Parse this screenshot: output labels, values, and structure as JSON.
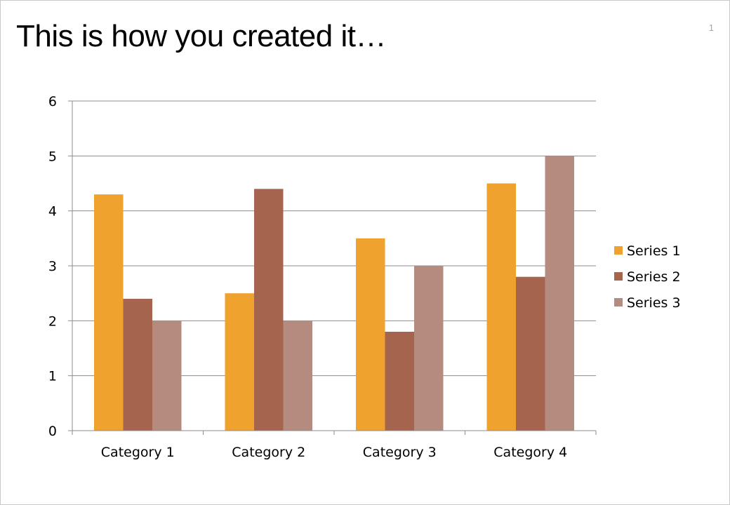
{
  "slide": {
    "title": "This is how you created it…",
    "page_number": "1"
  },
  "chart_data": {
    "type": "bar",
    "categories": [
      "Category 1",
      "Category 2",
      "Category 3",
      "Category 4"
    ],
    "series": [
      {
        "name": "Series 1",
        "values": [
          4.3,
          2.5,
          3.5,
          4.5
        ],
        "color": "#f0a22e"
      },
      {
        "name": "Series 2",
        "values": [
          2.4,
          4.4,
          1.8,
          2.8
        ],
        "color": "#a5644e"
      },
      {
        "name": "Series 3",
        "values": [
          2,
          2,
          3,
          5
        ],
        "color": "#b58b80"
      }
    ],
    "ylim": [
      0,
      6
    ],
    "yticks": [
      "0",
      "1",
      "2",
      "3",
      "4",
      "5",
      "6"
    ],
    "grid": true,
    "legend": "right"
  }
}
